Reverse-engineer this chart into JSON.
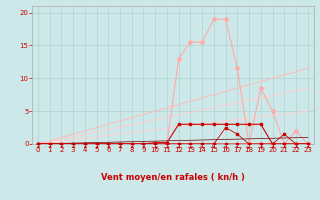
{
  "bg_color": "#cce8e8",
  "grid_color": "#aacccc",
  "xlabel": "Vent moyen/en rafales ( kn/h )",
  "xlabel_color": "#cc0000",
  "xlabel_fontsize": 6,
  "tick_color": "#cc0000",
  "tick_fontsize": 5,
  "xlim": [
    -0.5,
    23.5
  ],
  "ylim": [
    0,
    21
  ],
  "yticks": [
    0,
    5,
    10,
    15,
    20
  ],
  "xticks": [
    0,
    1,
    2,
    3,
    4,
    5,
    6,
    7,
    8,
    9,
    10,
    11,
    12,
    13,
    14,
    15,
    16,
    17,
    18,
    19,
    20,
    21,
    22,
    23
  ],
  "lines": [
    {
      "x": [
        0,
        10,
        11,
        12,
        13,
        14,
        15,
        16,
        17,
        18,
        19,
        20,
        21,
        22,
        23
      ],
      "y": [
        0,
        0,
        0,
        13,
        15.5,
        15.5,
        19,
        19,
        11.5,
        0,
        0,
        0,
        0,
        0,
        0
      ],
      "color": "#ffaaaa",
      "lw": 0.8,
      "marker": "D",
      "ms": 2.0,
      "zorder": 3
    },
    {
      "x": [
        0,
        17,
        18,
        19,
        20,
        21,
        22,
        23
      ],
      "y": [
        0,
        0,
        0,
        8.5,
        5.0,
        0,
        2.0,
        0
      ],
      "color": "#ffaaaa",
      "lw": 0.8,
      "marker": "D",
      "ms": 2.0,
      "zorder": 3
    },
    {
      "x": [
        0,
        23
      ],
      "y": [
        0,
        11.5
      ],
      "color": "#ffbbbb",
      "lw": 0.7,
      "marker": "None",
      "ms": 0,
      "zorder": 2
    },
    {
      "x": [
        0,
        23
      ],
      "y": [
        0,
        8.5
      ],
      "color": "#ffcccc",
      "lw": 0.7,
      "marker": "None",
      "ms": 0,
      "zorder": 2
    },
    {
      "x": [
        0,
        23
      ],
      "y": [
        0,
        5.0
      ],
      "color": "#ffd0d0",
      "lw": 0.7,
      "marker": "None",
      "ms": 0,
      "zorder": 2
    },
    {
      "x": [
        0,
        1,
        2,
        3,
        4,
        5,
        6,
        7,
        8,
        9,
        10,
        11,
        12,
        13,
        14,
        15,
        16,
        17,
        18,
        19,
        20,
        21,
        22,
        23
      ],
      "y": [
        0,
        0,
        0,
        0,
        0,
        0,
        0,
        0,
        0,
        0,
        0.2,
        0.2,
        3,
        3,
        3,
        3,
        3,
        3,
        3,
        3,
        0,
        0,
        0,
        0
      ],
      "color": "#cc0000",
      "lw": 0.8,
      "marker": "s",
      "ms": 1.8,
      "zorder": 5
    },
    {
      "x": [
        0,
        1,
        2,
        3,
        4,
        5,
        6,
        7,
        8,
        9,
        10,
        11,
        12,
        13,
        14,
        15,
        16,
        17,
        18,
        19,
        20,
        21,
        22,
        23
      ],
      "y": [
        0,
        0,
        0,
        0,
        0,
        0,
        0,
        0,
        0,
        0,
        0,
        0,
        0,
        0,
        0,
        0,
        2.5,
        1.5,
        0,
        0,
        0,
        0,
        0,
        0
      ],
      "color": "#cc0000",
      "lw": 0.6,
      "marker": "s",
      "ms": 1.5,
      "zorder": 5
    },
    {
      "x": [
        0,
        1,
        2,
        3,
        4,
        5,
        6,
        7,
        8,
        9,
        10,
        11,
        12,
        13,
        14,
        15,
        16,
        17,
        18,
        19,
        20,
        21,
        22,
        23
      ],
      "y": [
        0,
        0,
        0,
        0,
        0,
        0,
        0,
        0,
        0,
        0,
        0,
        0,
        0,
        0,
        0,
        0,
        0,
        0,
        0,
        0,
        0,
        1.5,
        0,
        0
      ],
      "color": "#cc0000",
      "lw": 0.6,
      "marker": "s",
      "ms": 1.5,
      "zorder": 5
    },
    {
      "x": [
        0,
        23
      ],
      "y": [
        0,
        1.0
      ],
      "color": "#660000",
      "lw": 0.5,
      "marker": "None",
      "ms": 0,
      "zorder": 4
    }
  ],
  "arrows": {
    "x": [
      0,
      1,
      2,
      3,
      4,
      5,
      6,
      7,
      8,
      9,
      10,
      11,
      12,
      13,
      14,
      15,
      16,
      17,
      18,
      19,
      20,
      21,
      22,
      23
    ],
    "angles_deg": [
      225,
      225,
      225,
      225,
      225,
      225,
      225,
      225,
      225,
      225,
      315,
      315,
      270,
      315,
      90,
      135,
      90,
      90,
      45,
      225,
      225,
      225,
      225,
      225
    ]
  }
}
